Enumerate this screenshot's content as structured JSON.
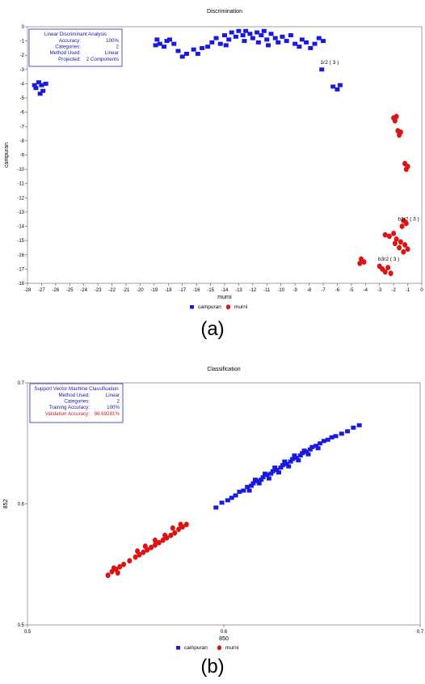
{
  "figure": {
    "caption_a": "(a)",
    "caption_b": "(b)"
  },
  "chart_data": [
    {
      "type": "scatter",
      "title": "Discrimination",
      "xlabel": "murni",
      "ylabel": "campuran",
      "xlim": [
        -28,
        0
      ],
      "ylim": [
        -18,
        0
      ],
      "xticks": [
        -28,
        -27,
        -26,
        -25,
        -24,
        -23,
        -22,
        -21,
        -20,
        -19,
        -18,
        -17,
        -16,
        -15,
        -14,
        -13,
        -12,
        -11,
        -10,
        -9,
        -8,
        -7,
        -6,
        -5,
        -4,
        -3,
        -2,
        -1,
        0
      ],
      "yticks": [
        0,
        -1,
        -2,
        -3,
        -4,
        -5,
        -6,
        -7,
        -8,
        -9,
        -10,
        -11,
        -12,
        -13,
        -14,
        -15,
        -16,
        -17,
        -18
      ],
      "legend_position": "bottom-center",
      "info_box": {
        "heading": "Linear Discriminant Analysis",
        "rows": [
          {
            "label": "Accuracy:",
            "value": "100%"
          },
          {
            "label": "Categories:",
            "value": "2"
          },
          {
            "label": "Method Used:",
            "value": "Linear"
          },
          {
            "label": "Projected:",
            "value": "2 Components"
          }
        ]
      },
      "annotations": [
        {
          "text": "1r2 ( 3 )",
          "x": -7.2,
          "y": -2.6
        },
        {
          "text": "b3r2 ( 3 )",
          "x": -3.1,
          "y": -16.4
        },
        {
          "text": "b1r2 ( 3 )",
          "x": -1.7,
          "y": -13.6
        }
      ],
      "series": [
        {
          "name": "campuran",
          "color": "#1a1adc",
          "marker": "square",
          "points": [
            [
              -27.2,
              -3.9
            ],
            [
              -27.0,
              -4.1
            ],
            [
              -27.4,
              -4.3
            ],
            [
              -26.9,
              -4.5
            ],
            [
              -27.1,
              -4.7
            ],
            [
              -26.7,
              -4.0
            ],
            [
              -27.5,
              -4.1
            ],
            [
              -18.8,
              -0.9
            ],
            [
              -18.6,
              -1.2
            ],
            [
              -18.3,
              -1.4
            ],
            [
              -18.1,
              -1.0
            ],
            [
              -17.9,
              -0.9
            ],
            [
              -18.9,
              -1.3
            ],
            [
              -17.6,
              -1.2
            ],
            [
              -17.3,
              -1.7
            ],
            [
              -17.0,
              -2.1
            ],
            [
              -16.7,
              -1.9
            ],
            [
              -16.2,
              -1.6
            ],
            [
              -15.9,
              -1.9
            ],
            [
              -15.6,
              -1.5
            ],
            [
              -15.2,
              -1.4
            ],
            [
              -14.9,
              -1.1
            ],
            [
              -14.6,
              -0.8
            ],
            [
              -14.3,
              -1.2
            ],
            [
              -14.0,
              -0.6
            ],
            [
              -13.7,
              -0.9
            ],
            [
              -13.5,
              -0.4
            ],
            [
              -13.2,
              -0.7
            ],
            [
              -13.0,
              -0.3
            ],
            [
              -12.7,
              -0.6
            ],
            [
              -12.5,
              -0.3
            ],
            [
              -12.2,
              -0.5
            ],
            [
              -12.0,
              -0.8
            ],
            [
              -11.7,
              -0.4
            ],
            [
              -11.4,
              -0.6
            ],
            [
              -11.2,
              -0.3
            ],
            [
              -11.0,
              -0.9
            ],
            [
              -10.7,
              -0.5
            ],
            [
              -10.4,
              -0.8
            ],
            [
              -10.2,
              -1.1
            ],
            [
              -9.9,
              -0.7
            ],
            [
              -9.6,
              -1.0
            ],
            [
              -9.3,
              -0.6
            ],
            [
              -9.0,
              -1.2
            ],
            [
              -8.7,
              -1.4
            ],
            [
              -8.5,
              -0.9
            ],
            [
              -8.2,
              -1.1
            ],
            [
              -7.9,
              -1.5
            ],
            [
              -7.6,
              -1.2
            ],
            [
              -7.3,
              -0.8
            ],
            [
              -7.0,
              -1.0
            ],
            [
              -12.6,
              -1.0
            ],
            [
              -13.9,
              -1.3
            ],
            [
              -11.6,
              -1.1
            ],
            [
              -10.9,
              -1.3
            ],
            [
              -7.1,
              -3.0
            ],
            [
              -6.3,
              -4.2
            ],
            [
              -6.0,
              -4.4
            ],
            [
              -5.8,
              -4.1
            ]
          ]
        },
        {
          "name": "murni",
          "color": "#dc1414",
          "marker": "circle",
          "points": [
            [
              -2.0,
              -6.4
            ],
            [
              -1.8,
              -6.3
            ],
            [
              -1.9,
              -6.6
            ],
            [
              -1.7,
              -7.3
            ],
            [
              -1.5,
              -7.4
            ],
            [
              -1.6,
              -7.6
            ],
            [
              -1.2,
              -9.6
            ],
            [
              -1.0,
              -9.8
            ],
            [
              -1.1,
              -10.0
            ],
            [
              -1.3,
              -13.6
            ],
            [
              -1.1,
              -13.8
            ],
            [
              -1.4,
              -14.0
            ],
            [
              -2.6,
              -14.6
            ],
            [
              -2.3,
              -14.7
            ],
            [
              -2.0,
              -14.5
            ],
            [
              -1.8,
              -14.9
            ],
            [
              -1.5,
              -15.1
            ],
            [
              -1.2,
              -15.3
            ],
            [
              -1.0,
              -15.6
            ],
            [
              -1.9,
              -15.2
            ],
            [
              -1.6,
              -15.5
            ],
            [
              -1.3,
              -15.8
            ],
            [
              -4.3,
              -16.3
            ],
            [
              -4.1,
              -16.5
            ],
            [
              -4.4,
              -16.6
            ],
            [
              -3.0,
              -16.8
            ],
            [
              -2.8,
              -17.0
            ],
            [
              -2.6,
              -17.2
            ],
            [
              -2.4,
              -16.9
            ],
            [
              -2.2,
              -17.3
            ]
          ]
        }
      ]
    },
    {
      "type": "scatter",
      "title": "Classification",
      "xlabel": "850",
      "ylabel": "852",
      "xlim": [
        0.5,
        0.7
      ],
      "ylim": [
        0.5,
        0.7
      ],
      "xticks": [
        0.5,
        0.6,
        0.7
      ],
      "yticks": [
        0.5,
        0.6,
        0.7
      ],
      "legend_position": "bottom-center",
      "info_box": {
        "heading": "Support Vector Machine Classification",
        "rows": [
          {
            "label": "Method Used:",
            "value": "Linear"
          },
          {
            "label": "Categories:",
            "value": "2"
          },
          {
            "label": "Training Accuracy:",
            "value": "100%"
          },
          {
            "label": "Validation Accuracy:",
            "value": "98.69281%",
            "highlight": true
          }
        ]
      },
      "series": [
        {
          "name": "campuran",
          "color": "#1a1adc",
          "marker": "square",
          "points": [
            [
              0.596,
              0.597
            ],
            [
              0.599,
              0.601
            ],
            [
              0.602,
              0.603
            ],
            [
              0.604,
              0.605
            ],
            [
              0.606,
              0.607
            ],
            [
              0.608,
              0.61
            ],
            [
              0.61,
              0.611
            ],
            [
              0.612,
              0.614
            ],
            [
              0.614,
              0.615
            ],
            [
              0.615,
              0.617
            ],
            [
              0.617,
              0.619
            ],
            [
              0.619,
              0.62
            ],
            [
              0.62,
              0.622
            ],
            [
              0.622,
              0.624
            ],
            [
              0.624,
              0.625
            ],
            [
              0.625,
              0.627
            ],
            [
              0.627,
              0.628
            ],
            [
              0.629,
              0.63
            ],
            [
              0.63,
              0.632
            ],
            [
              0.632,
              0.633
            ],
            [
              0.634,
              0.635
            ],
            [
              0.635,
              0.637
            ],
            [
              0.637,
              0.638
            ],
            [
              0.639,
              0.64
            ],
            [
              0.64,
              0.642
            ],
            [
              0.642,
              0.643
            ],
            [
              0.644,
              0.645
            ],
            [
              0.645,
              0.647
            ],
            [
              0.647,
              0.648
            ],
            [
              0.649,
              0.65
            ],
            [
              0.651,
              0.652
            ],
            [
              0.653,
              0.653
            ],
            [
              0.655,
              0.655
            ],
            [
              0.657,
              0.656
            ],
            [
              0.66,
              0.658
            ],
            [
              0.663,
              0.66
            ],
            [
              0.666,
              0.663
            ],
            [
              0.669,
              0.665
            ],
            [
              0.613,
              0.611
            ],
            [
              0.618,
              0.617
            ],
            [
              0.623,
              0.621
            ],
            [
              0.628,
              0.626
            ],
            [
              0.633,
              0.631
            ],
            [
              0.638,
              0.636
            ],
            [
              0.643,
              0.641
            ],
            [
              0.648,
              0.646
            ],
            [
              0.616,
              0.62
            ],
            [
              0.621,
              0.625
            ],
            [
              0.626,
              0.63
            ],
            [
              0.631,
              0.635
            ],
            [
              0.636,
              0.64
            ],
            [
              0.641,
              0.644
            ]
          ]
        },
        {
          "name": "murni",
          "color": "#dc1414",
          "marker": "circle",
          "points": [
            [
              0.541,
              0.541
            ],
            [
              0.543,
              0.544
            ],
            [
              0.545,
              0.546
            ],
            [
              0.547,
              0.548
            ],
            [
              0.544,
              0.547
            ],
            [
              0.546,
              0.543
            ],
            [
              0.549,
              0.55
            ],
            [
              0.552,
              0.553
            ],
            [
              0.555,
              0.556
            ],
            [
              0.557,
              0.558
            ],
            [
              0.559,
              0.56
            ],
            [
              0.561,
              0.562
            ],
            [
              0.563,
              0.564
            ],
            [
              0.565,
              0.566
            ],
            [
              0.567,
              0.568
            ],
            [
              0.569,
              0.57
            ],
            [
              0.571,
              0.572
            ],
            [
              0.573,
              0.574
            ],
            [
              0.575,
              0.576
            ],
            [
              0.577,
              0.579
            ],
            [
              0.579,
              0.581
            ],
            [
              0.581,
              0.583
            ],
            [
              0.574,
              0.58
            ],
            [
              0.578,
              0.583
            ],
            [
              0.556,
              0.561
            ],
            [
              0.56,
              0.565
            ],
            [
              0.565,
              0.57
            ],
            [
              0.57,
              0.574
            ]
          ]
        }
      ]
    }
  ]
}
